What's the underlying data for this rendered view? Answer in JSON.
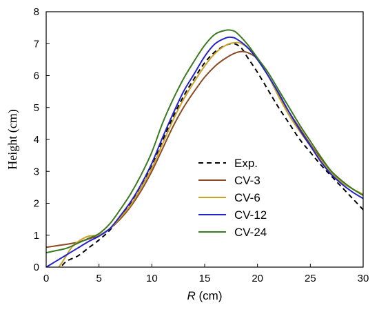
{
  "chart_data": {
    "type": "line",
    "xlabel_var": "R",
    "xlabel_unit": " (cm)",
    "ylabel": "Height (cm)",
    "xlim": [
      0,
      30
    ],
    "ylim": [
      0,
      8
    ],
    "xticks": [
      0,
      5,
      10,
      15,
      20,
      25,
      30
    ],
    "yticks": [
      0,
      1,
      2,
      3,
      4,
      5,
      6,
      7,
      8
    ],
    "grid": false,
    "legend_position": "center-right",
    "series": [
      {
        "name": "Exp.",
        "color": "#000000",
        "dash": true,
        "points": [
          [
            1.5,
            0.05
          ],
          [
            2,
            0.2
          ],
          [
            3,
            0.35
          ],
          [
            4,
            0.6
          ],
          [
            5,
            0.85
          ],
          [
            6,
            1.15
          ],
          [
            7,
            1.55
          ],
          [
            8,
            2.0
          ],
          [
            9,
            2.55
          ],
          [
            10,
            3.2
          ],
          [
            11,
            3.95
          ],
          [
            12,
            4.7
          ],
          [
            13,
            5.35
          ],
          [
            14,
            5.9
          ],
          [
            15,
            6.4
          ],
          [
            16,
            6.75
          ],
          [
            17,
            6.95
          ],
          [
            17.8,
            7.0
          ],
          [
            18.5,
            6.85
          ],
          [
            19,
            6.6
          ],
          [
            20,
            6.1
          ],
          [
            21,
            5.55
          ],
          [
            22,
            5.0
          ],
          [
            23,
            4.5
          ],
          [
            24,
            4.0
          ],
          [
            25,
            3.6
          ],
          [
            26,
            3.2
          ],
          [
            27,
            2.85
          ],
          [
            28,
            2.5
          ],
          [
            29,
            2.15
          ],
          [
            30,
            1.8
          ]
        ]
      },
      {
        "name": "CV-3",
        "color": "#8B4A22",
        "dash": false,
        "points": [
          [
            0,
            0.62
          ],
          [
            1,
            0.67
          ],
          [
            2,
            0.72
          ],
          [
            3,
            0.78
          ],
          [
            4,
            0.88
          ],
          [
            5,
            1.0
          ],
          [
            6,
            1.2
          ],
          [
            7,
            1.5
          ],
          [
            8,
            1.9
          ],
          [
            9,
            2.4
          ],
          [
            10,
            3.0
          ],
          [
            11,
            3.7
          ],
          [
            12,
            4.4
          ],
          [
            13,
            5.0
          ],
          [
            14,
            5.5
          ],
          [
            15,
            5.95
          ],
          [
            16,
            6.3
          ],
          [
            17,
            6.55
          ],
          [
            18,
            6.72
          ],
          [
            18.7,
            6.75
          ],
          [
            19.5,
            6.65
          ],
          [
            20,
            6.5
          ],
          [
            21,
            6.0
          ],
          [
            22,
            5.4
          ],
          [
            23,
            4.85
          ],
          [
            24,
            4.35
          ],
          [
            25,
            3.85
          ],
          [
            26,
            3.4
          ],
          [
            27,
            3.0
          ],
          [
            28,
            2.7
          ],
          [
            29,
            2.45
          ],
          [
            30,
            2.25
          ]
        ]
      },
      {
        "name": "CV-6",
        "color": "#C9A227",
        "dash": false,
        "points": [
          [
            1.2,
            0.0
          ],
          [
            1.8,
            0.3
          ],
          [
            2.5,
            0.65
          ],
          [
            3.5,
            0.9
          ],
          [
            4.2,
            0.98
          ],
          [
            5,
            1.0
          ],
          [
            6,
            1.2
          ],
          [
            7,
            1.55
          ],
          [
            8,
            1.95
          ],
          [
            9,
            2.5
          ],
          [
            10,
            3.1
          ],
          [
            11,
            3.85
          ],
          [
            12,
            4.6
          ],
          [
            13,
            5.25
          ],
          [
            14,
            5.8
          ],
          [
            15,
            6.3
          ],
          [
            16,
            6.7
          ],
          [
            17,
            6.95
          ],
          [
            17.8,
            7.03
          ],
          [
            18.5,
            7.0
          ],
          [
            19.5,
            6.75
          ],
          [
            20,
            6.55
          ],
          [
            21,
            6.0
          ],
          [
            22,
            5.35
          ],
          [
            23,
            4.75
          ],
          [
            24,
            4.25
          ],
          [
            25,
            3.8
          ],
          [
            26,
            3.35
          ],
          [
            27,
            2.95
          ],
          [
            28,
            2.65
          ],
          [
            29,
            2.45
          ],
          [
            30,
            2.28
          ]
        ]
      },
      {
        "name": "CV-12",
        "color": "#2222CC",
        "dash": false,
        "points": [
          [
            0,
            0.0
          ],
          [
            1,
            0.2
          ],
          [
            2,
            0.4
          ],
          [
            3,
            0.6
          ],
          [
            4,
            0.8
          ],
          [
            5,
            0.97
          ],
          [
            6,
            1.2
          ],
          [
            7,
            1.6
          ],
          [
            8,
            2.05
          ],
          [
            9,
            2.6
          ],
          [
            10,
            3.25
          ],
          [
            11,
            4.05
          ],
          [
            12,
            4.8
          ],
          [
            13,
            5.5
          ],
          [
            14,
            6.05
          ],
          [
            15,
            6.6
          ],
          [
            16,
            7.0
          ],
          [
            17,
            7.18
          ],
          [
            17.5,
            7.2
          ],
          [
            18,
            7.15
          ],
          [
            19,
            6.9
          ],
          [
            20,
            6.5
          ],
          [
            21,
            6.0
          ],
          [
            22,
            5.45
          ],
          [
            23,
            4.85
          ],
          [
            24,
            4.3
          ],
          [
            25,
            3.8
          ],
          [
            26,
            3.3
          ],
          [
            27,
            2.9
          ],
          [
            28,
            2.6
          ],
          [
            29,
            2.35
          ],
          [
            30,
            2.15
          ]
        ]
      },
      {
        "name": "CV-24",
        "color": "#3A7A1E",
        "dash": false,
        "points": [
          [
            0,
            0.45
          ],
          [
            1,
            0.52
          ],
          [
            2,
            0.6
          ],
          [
            3,
            0.75
          ],
          [
            4,
            0.9
          ],
          [
            5,
            1.05
          ],
          [
            6,
            1.35
          ],
          [
            7,
            1.8
          ],
          [
            8,
            2.3
          ],
          [
            9,
            2.9
          ],
          [
            10,
            3.6
          ],
          [
            11,
            4.5
          ],
          [
            12,
            5.25
          ],
          [
            13,
            5.9
          ],
          [
            14,
            6.45
          ],
          [
            15,
            6.95
          ],
          [
            16,
            7.3
          ],
          [
            17,
            7.42
          ],
          [
            17.5,
            7.42
          ],
          [
            18,
            7.35
          ],
          [
            19,
            7.0
          ],
          [
            20,
            6.55
          ],
          [
            21,
            6.1
          ],
          [
            22,
            5.55
          ],
          [
            23,
            5.0
          ],
          [
            24,
            4.45
          ],
          [
            25,
            3.95
          ],
          [
            26,
            3.45
          ],
          [
            27,
            3.0
          ],
          [
            28,
            2.7
          ],
          [
            29,
            2.45
          ],
          [
            30,
            2.25
          ]
        ]
      }
    ]
  }
}
